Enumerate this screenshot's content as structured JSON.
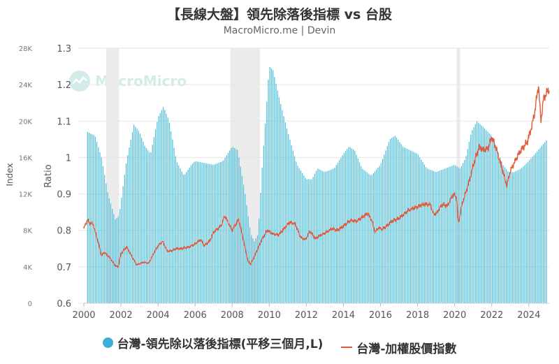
{
  "chart_data": {
    "type": "bar",
    "title": "【長線大盤】領先除落後指標 vs 台股",
    "subtitle": "MacroMicro.me | Devin",
    "watermark": "MacroMicro",
    "y_left_label": "Index",
    "y_right_label": "Ratio",
    "y_left_ticks": [
      "0",
      "4K",
      "8K",
      "12K",
      "16K",
      "20K",
      "24K",
      "28K"
    ],
    "y_left_range": [
      0,
      28000
    ],
    "y_right_ticks": [
      "0.6",
      "0.7",
      "0.8",
      "0.9",
      "1",
      "1.1",
      "1.2",
      "1.3"
    ],
    "y_right_range": [
      0.6,
      1.3
    ],
    "x_range": [
      2000,
      2025.1
    ],
    "x_ticks": [
      "2000",
      "2002",
      "2004",
      "2006",
      "2008",
      "2010",
      "2012",
      "2014",
      "2016",
      "2018",
      "2020",
      "2022",
      "2024"
    ],
    "grid": true,
    "legend_position": "bottom",
    "recession_shading": [
      [
        2001.2,
        2001.9
      ],
      [
        2007.9,
        2009.5
      ],
      [
        2020.1,
        2020.3
      ]
    ],
    "colors": {
      "bars": "#4fbfdb",
      "line": "#e05a3b",
      "shading": "#ebebeb"
    },
    "series": [
      {
        "name": "台灣-領先除以落後指標(平移三個月,L)",
        "kind": "bar",
        "axis": "right",
        "anchors": [
          [
            2000.2,
            1.07
          ],
          [
            2000.6,
            1.06
          ],
          [
            2000.95,
            1.0
          ],
          [
            2001.3,
            0.9
          ],
          [
            2001.7,
            0.83
          ],
          [
            2001.9,
            0.84
          ],
          [
            2002.3,
            0.99
          ],
          [
            2002.7,
            1.09
          ],
          [
            2003.0,
            1.07
          ],
          [
            2003.3,
            1.03
          ],
          [
            2003.6,
            1.01
          ],
          [
            2004.0,
            1.11
          ],
          [
            2004.3,
            1.14
          ],
          [
            2004.6,
            1.1
          ],
          [
            2005.0,
            0.99
          ],
          [
            2005.4,
            0.95
          ],
          [
            2005.8,
            0.98
          ],
          [
            2006.0,
            0.99
          ],
          [
            2006.5,
            0.985
          ],
          [
            2007.0,
            0.98
          ],
          [
            2007.5,
            0.99
          ],
          [
            2008.0,
            1.03
          ],
          [
            2008.3,
            1.02
          ],
          [
            2008.7,
            0.9
          ],
          [
            2009.0,
            0.79
          ],
          [
            2009.2,
            0.77
          ],
          [
            2009.4,
            0.79
          ],
          [
            2009.6,
            0.96
          ],
          [
            2010.0,
            1.25
          ],
          [
            2010.2,
            1.24
          ],
          [
            2010.6,
            1.15
          ],
          [
            2011.0,
            1.07
          ],
          [
            2011.5,
            0.98
          ],
          [
            2012.0,
            0.94
          ],
          [
            2012.3,
            0.94
          ],
          [
            2012.6,
            0.97
          ],
          [
            2013.0,
            0.96
          ],
          [
            2013.5,
            0.97
          ],
          [
            2014.0,
            1.01
          ],
          [
            2014.3,
            1.03
          ],
          [
            2014.6,
            1.02
          ],
          [
            2015.0,
            0.97
          ],
          [
            2015.5,
            0.95
          ],
          [
            2016.0,
            0.98
          ],
          [
            2016.5,
            1.05
          ],
          [
            2016.8,
            1.06
          ],
          [
            2017.2,
            1.03
          ],
          [
            2017.6,
            1.02
          ],
          [
            2018.0,
            1.01
          ],
          [
            2018.5,
            0.97
          ],
          [
            2019.0,
            0.96
          ],
          [
            2019.5,
            0.97
          ],
          [
            2020.0,
            0.98
          ],
          [
            2020.3,
            0.97
          ],
          [
            2020.6,
            1.0
          ],
          [
            2020.9,
            1.07
          ],
          [
            2021.2,
            1.1
          ],
          [
            2021.6,
            1.08
          ],
          [
            2022.0,
            1.06
          ],
          [
            2022.3,
            1.02
          ],
          [
            2022.6,
            0.98
          ],
          [
            2022.9,
            0.96
          ],
          [
            2023.2,
            0.96
          ],
          [
            2023.6,
            0.97
          ],
          [
            2024.0,
            0.99
          ],
          [
            2024.5,
            1.02
          ],
          [
            2025.0,
            1.05
          ]
        ]
      },
      {
        "name": "台灣-加權股價指數",
        "kind": "line",
        "axis": "left",
        "anchors": [
          [
            2000.0,
            8200
          ],
          [
            2000.1,
            8700
          ],
          [
            2000.2,
            9200
          ],
          [
            2000.3,
            8800
          ],
          [
            2000.5,
            8700
          ],
          [
            2000.8,
            6500
          ],
          [
            2000.95,
            5200
          ],
          [
            2001.1,
            5600
          ],
          [
            2001.4,
            5000
          ],
          [
            2001.7,
            4100
          ],
          [
            2001.85,
            4000
          ],
          [
            2002.0,
            5400
          ],
          [
            2002.3,
            6200
          ],
          [
            2002.6,
            5100
          ],
          [
            2002.85,
            4200
          ],
          [
            2003.2,
            4500
          ],
          [
            2003.5,
            4400
          ],
          [
            2003.8,
            5600
          ],
          [
            2004.0,
            6300
          ],
          [
            2004.25,
            6800
          ],
          [
            2004.5,
            5700
          ],
          [
            2004.8,
            5800
          ],
          [
            2005.0,
            6000
          ],
          [
            2005.3,
            6000
          ],
          [
            2005.7,
            6200
          ],
          [
            2006.0,
            6500
          ],
          [
            2006.3,
            7000
          ],
          [
            2006.5,
            6300
          ],
          [
            2006.8,
            6900
          ],
          [
            2007.0,
            7800
          ],
          [
            2007.4,
            8500
          ],
          [
            2007.6,
            9600
          ],
          [
            2007.8,
            8800
          ],
          [
            2008.0,
            8000
          ],
          [
            2008.35,
            9200
          ],
          [
            2008.6,
            7000
          ],
          [
            2008.85,
            4600
          ],
          [
            2009.0,
            4300
          ],
          [
            2009.3,
            5600
          ],
          [
            2009.6,
            7000
          ],
          [
            2009.9,
            8000
          ],
          [
            2010.2,
            7600
          ],
          [
            2010.5,
            7500
          ],
          [
            2010.8,
            8200
          ],
          [
            2011.1,
            8900
          ],
          [
            2011.4,
            8700
          ],
          [
            2011.7,
            7200
          ],
          [
            2011.95,
            7000
          ],
          [
            2012.2,
            7900
          ],
          [
            2012.5,
            7100
          ],
          [
            2012.8,
            7500
          ],
          [
            2013.0,
            7700
          ],
          [
            2013.4,
            8200
          ],
          [
            2013.7,
            8000
          ],
          [
            2014.0,
            8500
          ],
          [
            2014.4,
            9100
          ],
          [
            2014.7,
            9000
          ],
          [
            2015.0,
            9400
          ],
          [
            2015.3,
            9900
          ],
          [
            2015.55,
            9000
          ],
          [
            2015.7,
            7800
          ],
          [
            2015.9,
            8300
          ],
          [
            2016.1,
            8100
          ],
          [
            2016.5,
            8800
          ],
          [
            2016.8,
            9200
          ],
          [
            2017.0,
            9300
          ],
          [
            2017.5,
            10200
          ],
          [
            2018.0,
            10600
          ],
          [
            2018.4,
            10900
          ],
          [
            2018.7,
            10800
          ],
          [
            2018.85,
            9800
          ],
          [
            2019.0,
            9800
          ],
          [
            2019.3,
            10800
          ],
          [
            2019.6,
            10700
          ],
          [
            2019.95,
            12000
          ],
          [
            2020.1,
            11600
          ],
          [
            2020.2,
            8700
          ],
          [
            2020.4,
            10900
          ],
          [
            2020.7,
            12800
          ],
          [
            2020.95,
            14700
          ],
          [
            2021.2,
            16500
          ],
          [
            2021.35,
            17200
          ],
          [
            2021.5,
            16800
          ],
          [
            2021.8,
            17000
          ],
          [
            2022.0,
            18300
          ],
          [
            2022.3,
            16600
          ],
          [
            2022.6,
            14500
          ],
          [
            2022.8,
            12900
          ],
          [
            2023.0,
            14500
          ],
          [
            2023.4,
            16200
          ],
          [
            2023.6,
            16900
          ],
          [
            2023.9,
            17600
          ],
          [
            2024.1,
            19000
          ],
          [
            2024.3,
            20700
          ],
          [
            2024.52,
            24000
          ],
          [
            2024.65,
            20000
          ],
          [
            2024.8,
            22500
          ],
          [
            2025.0,
            23200
          ],
          [
            2025.1,
            23500
          ]
        ]
      }
    ]
  },
  "legend": [
    {
      "label": "台灣-領先除以落後指標(平移三個月,L)"
    },
    {
      "label": "台灣-加權股價指數"
    }
  ]
}
